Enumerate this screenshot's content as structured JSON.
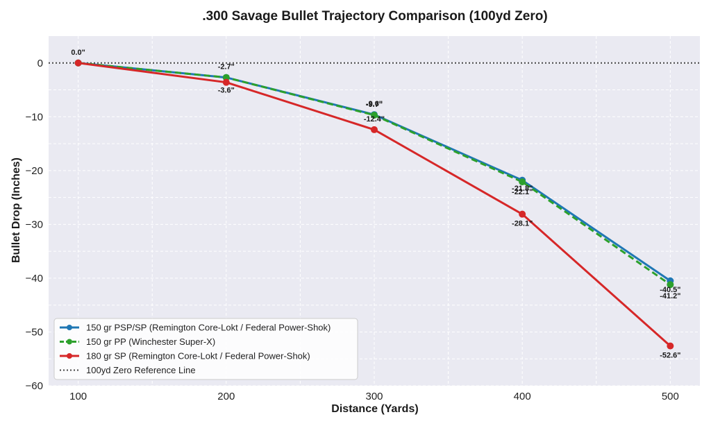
{
  "chart_data": {
    "type": "line",
    "title": ".300 Savage Bullet Trajectory Comparison (100yd Zero)",
    "xlabel": "Distance (Yards)",
    "ylabel": "Bullet Drop (Inches)",
    "x": [
      100,
      200,
      300,
      400,
      500
    ],
    "xlim": [
      80,
      520
    ],
    "ylim": [
      -60,
      5
    ],
    "x_ticks": [
      "100",
      "200",
      "300",
      "400",
      "500"
    ],
    "y_ticks": [
      0,
      -10,
      -20,
      -30,
      -40,
      -50,
      -60
    ],
    "y_tick_labels": [
      "0",
      "−10",
      "−20",
      "−30",
      "−40",
      "−50",
      "−60"
    ],
    "grid": true,
    "legend_position": "lower-left",
    "series": [
      {
        "name": "150 gr PSP/SP (Remington Core-Lokt / Federal Power-Shok)",
        "values": [
          0.0,
          -2.7,
          -9.6,
          -21.8,
          -40.5
        ],
        "labels": [
          "",
          "-2.7\"",
          "-9.6\"",
          "-21.8\"",
          "-40.5\""
        ],
        "color": "#1f77b4",
        "dash": "solid"
      },
      {
        "name": "150 gr PP (Winchester Super-X)",
        "values": [
          0.0,
          -2.7,
          -9.7,
          -22.1,
          -41.2
        ],
        "labels": [
          "",
          "",
          "-9.7\"",
          "-22.1\"",
          "-41.2\""
        ],
        "color": "#2ca02c",
        "dash": "dashed"
      },
      {
        "name": "180 gr SP (Remington Core-Lokt / Federal Power-Shok)",
        "values": [
          0.0,
          -3.6,
          -12.4,
          -28.1,
          -52.6
        ],
        "labels": [
          "0.0\"",
          "-3.6\"",
          "-12.4\"",
          "-28.1\"",
          "-52.6\""
        ],
        "color": "#d62728",
        "dash": "solid"
      }
    ],
    "reference_line": {
      "name": "100yd Zero Reference Line",
      "y": 0,
      "color": "#444444",
      "dash": "dotted"
    },
    "colors": {
      "plot_background": "#eaeaf2",
      "grid": "#ffffff"
    }
  }
}
